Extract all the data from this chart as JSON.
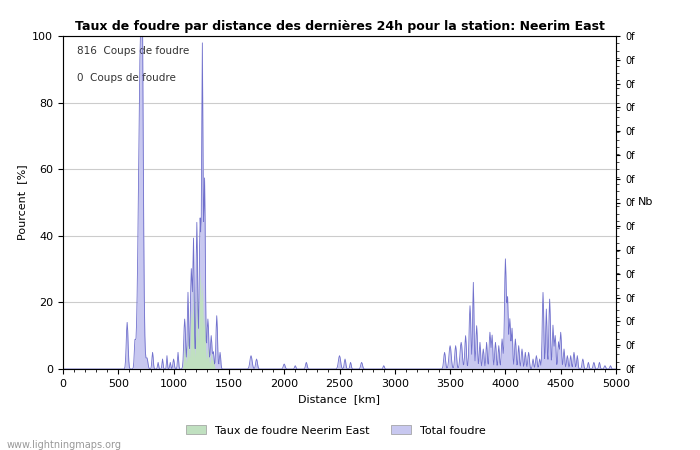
{
  "title": "Taux de foudre par distance des dernières 24h pour la station: Neerim East",
  "xlabel": "Distance  [km]",
  "ylabel": "Pourcent  [%]",
  "ylabel_right": "Nb",
  "annotation_line1": "816  Coups de foudre",
  "annotation_line2": "0  Coups de foudre",
  "watermark": "www.lightningmaps.org",
  "legend_label1": "Taux de foudre Neerim East",
  "legend_label2": "Total foudre",
  "xlim": [
    0,
    5000
  ],
  "ylim": [
    0,
    100
  ],
  "color_total": "#c8c8f0",
  "color_local": "#c0e0c0",
  "line_color": "#7070cc",
  "background_color": "#ffffff",
  "grid_color": "#cccccc",
  "right_tick_labels": [
    "0f",
    "0f",
    "0f",
    "0f",
    "0f",
    "0f",
    "0f",
    "0f",
    "0f",
    "0f",
    "0f",
    "0f",
    "0f",
    "0f",
    "0f"
  ]
}
